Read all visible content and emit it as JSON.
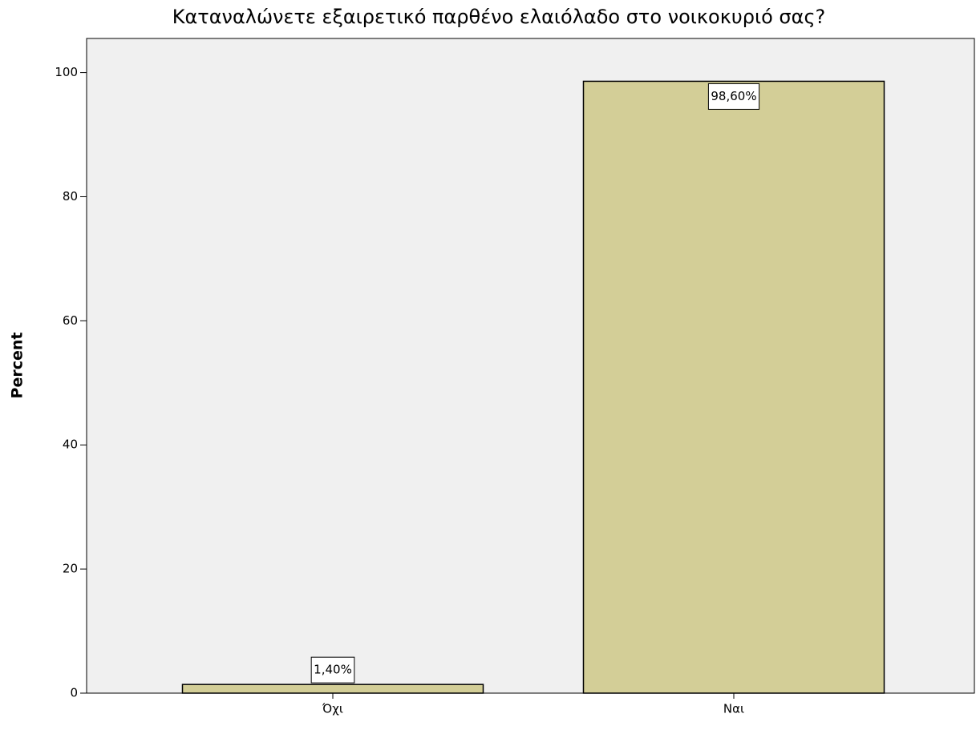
{
  "chart_data": {
    "type": "bar",
    "title": "Καταναλώνετε εξαιρετικό παρθένο ελαιόλαδο στο νοικοκυριό σας?",
    "y_label": "Percent",
    "categories": [
      "Όχι",
      "Ναι"
    ],
    "values": [
      1.4,
      98.6
    ],
    "value_labels": [
      "1,40%",
      "98,60%"
    ],
    "color": "#d3ce97",
    "ylim": [
      0,
      105.5
    ],
    "yticks": [
      0,
      20,
      40,
      60,
      80,
      100
    ],
    "grid": false
  }
}
